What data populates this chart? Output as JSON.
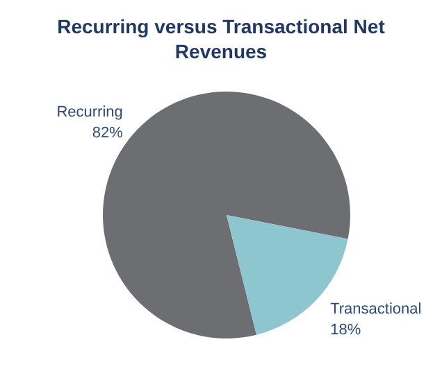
{
  "chart_data": {
    "type": "pie",
    "title": "Recurring versus Transactional Net Revenues",
    "categories": [
      "Recurring",
      "Transactional"
    ],
    "values": [
      82,
      18
    ],
    "value_labels": [
      "82%",
      "18%"
    ],
    "colors": [
      "#6d6e71",
      "#8ec6cf"
    ]
  }
}
